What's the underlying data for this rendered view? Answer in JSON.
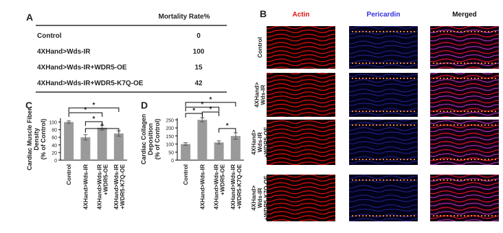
{
  "panel_labels": [
    "A",
    "B",
    "C",
    "D"
  ],
  "table": {
    "header": "Mortality Rate%",
    "rows": [
      [
        "Control",
        "0"
      ],
      [
        "4XHand>Wds-IR",
        "100"
      ],
      [
        "4XHand>Wds-IR+WDR5-OE",
        "15"
      ],
      [
        "4XHand>Wds-IR+WDR5-K7Q-OE",
        "42"
      ]
    ]
  },
  "chart_data": [
    {
      "type": "bar",
      "y_label": "Cardiac Muscle Fiber Density (% of Control)",
      "categories": [
        "Control",
        "4XHand>Wds-IR",
        "4XHand>Wds-IR +WDR5-OE",
        "4XHand>Wds-IR +WDR5-K7Q-OE"
      ],
      "values": [
        100,
        60,
        85,
        70
      ],
      "errors": [
        3,
        7,
        6,
        7
      ],
      "color": "#9a9a9a",
      "ylim": [
        0,
        110
      ],
      "yticks": [
        0,
        20,
        40,
        60,
        80,
        100
      ],
      "significance": [
        "*",
        "*",
        "*",
        "*"
      ]
    },
    {
      "type": "bar",
      "y_label": "Cardiac Collagen Deposition (% of Control)",
      "categories": [
        "Control",
        "4XHand>Wds-IR",
        "4XHand>Wds-IR +WDR5-OE",
        "4XHand>Wds-IR +WDR5-K7Q-OE"
      ],
      "values": [
        100,
        250,
        110,
        150
      ],
      "errors": [
        8,
        12,
        10,
        20
      ],
      "color": "#9a9a9a",
      "ylim": [
        0,
        260
      ],
      "yticks": [
        0,
        50,
        100,
        150,
        200,
        250
      ],
      "significance": [
        "*",
        "*",
        "*",
        "*",
        "*"
      ]
    }
  ],
  "images": {
    "columns": [
      "Actin",
      "Pericardin",
      "Merged"
    ],
    "rows": [
      "Control",
      "4XHand> Wds-IR",
      "4XHand> Wds-IR +WDR5-OE",
      "4XHand> Wds-IR +WDR5-K7Q-OE"
    ]
  }
}
